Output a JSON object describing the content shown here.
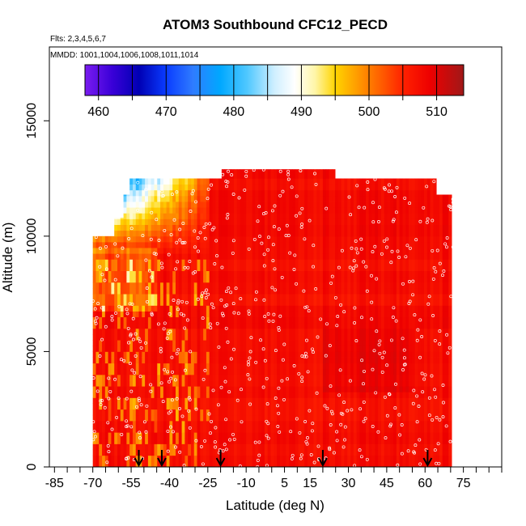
{
  "chart_data": {
    "type": "heatmap",
    "title": "ATOM3 Southbound CFC12_PECD",
    "flights_label": "Flts: 2,3,4,5,6,7",
    "mmdd_label": "MMDD: 1001,1004,1006,1008,1011,1014",
    "xlabel": "Latitude (deg N)",
    "ylabel": "Altitude (m)",
    "xlim": [
      -87,
      90
    ],
    "ylim": [
      0,
      18200
    ],
    "x_ticks": [
      -85,
      -70,
      -55,
      -40,
      -25,
      -10,
      5,
      15,
      30,
      45,
      60,
      75
    ],
    "y_ticks": [
      0,
      5000,
      10000,
      15000
    ],
    "colorbar": {
      "range": [
        458,
        514
      ],
      "ticks": [
        460,
        470,
        480,
        490,
        500,
        510
      ],
      "stops": [
        {
          "value": 458,
          "color": "#7a1cf0"
        },
        {
          "value": 462,
          "color": "#3a00d8"
        },
        {
          "value": 466,
          "color": "#0000b4"
        },
        {
          "value": 470,
          "color": "#0a3cff"
        },
        {
          "value": 474,
          "color": "#2f7cff"
        },
        {
          "value": 478,
          "color": "#00a8ff"
        },
        {
          "value": 482,
          "color": "#50c8ff"
        },
        {
          "value": 486,
          "color": "#cfefff"
        },
        {
          "value": 489,
          "color": "#ffffff"
        },
        {
          "value": 492,
          "color": "#fff6a8"
        },
        {
          "value": 495,
          "color": "#ffd400"
        },
        {
          "value": 498,
          "color": "#ffa000"
        },
        {
          "value": 502,
          "color": "#ff5a00"
        },
        {
          "value": 505,
          "color": "#ff2200"
        },
        {
          "value": 509,
          "color": "#ee0000"
        },
        {
          "value": 514,
          "color": "#a01818"
        }
      ]
    },
    "flight_arrow_latitudes": [
      -52,
      -43,
      -20,
      20,
      61
    ],
    "data_summary": "Field mostly 505-510; lower values 470-490 near 12000 m at -60 to -25 deg N; 495-502 patches in lower troposphere south of -25 deg N",
    "data_extent": {
      "lat_range": [
        -70,
        71
      ],
      "alt_top_by_segment": [
        {
          "lat_from": -70,
          "lat_to": -62,
          "alt_top": 10000
        },
        {
          "lat_from": -62,
          "lat_to": -58,
          "alt_top": 10800
        },
        {
          "lat_from": -58,
          "lat_to": -55,
          "alt_top": 11800
        },
        {
          "lat_from": -55,
          "lat_to": -20,
          "alt_top": 12500
        },
        {
          "lat_from": -20,
          "lat_to": 25,
          "alt_top": 12900
        },
        {
          "lat_from": 25,
          "lat_to": 65,
          "alt_top": 12500
        },
        {
          "lat_from": 65,
          "lat_to": 71,
          "alt_top": 11800
        }
      ]
    }
  }
}
